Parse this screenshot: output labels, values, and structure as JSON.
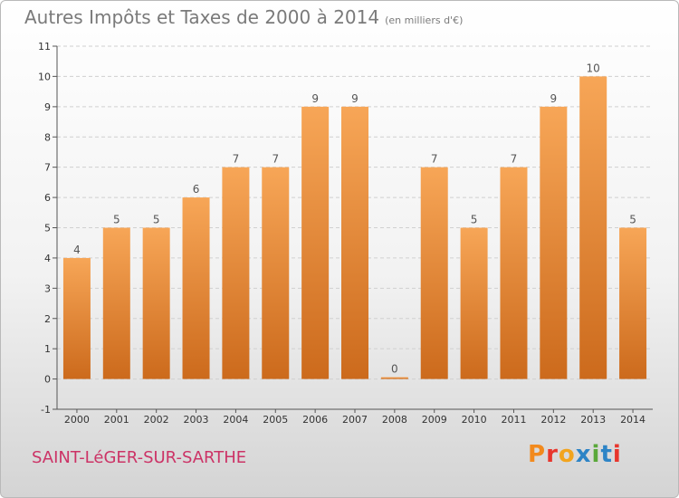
{
  "header": {
    "title": "Autres Impôts et Taxes de 2000 à 2014",
    "unit": "(en milliers d'€)"
  },
  "footer": {
    "location": "SAINT-LéGER-SUR-SARTHE",
    "logo": "Proxiti"
  },
  "colors": {
    "bar_light": "#f7a657",
    "bar_dark": "#cc6a1c",
    "location": "#cc3366",
    "logo_letters": [
      "#f28a1d",
      "#e8362d",
      "#f2a41d",
      "#2d84c6",
      "#5aa83a",
      "#2d84c6",
      "#e8362d"
    ]
  },
  "chart_data": {
    "type": "bar",
    "categories": [
      "2000",
      "2001",
      "2002",
      "2003",
      "2004",
      "2005",
      "2006",
      "2007",
      "2008",
      "2009",
      "2010",
      "2011",
      "2012",
      "2013",
      "2014"
    ],
    "values": [
      4,
      5,
      5,
      6,
      7,
      7,
      9,
      9,
      0,
      7,
      5,
      7,
      9,
      10,
      5
    ],
    "ylim": [
      -1,
      11
    ],
    "yticks": [
      "-1",
      "0",
      "1",
      "2",
      "3",
      "4",
      "5",
      "6",
      "7",
      "8",
      "9",
      "10",
      "11"
    ],
    "grid": "horizontal dashed",
    "legend": "none"
  }
}
